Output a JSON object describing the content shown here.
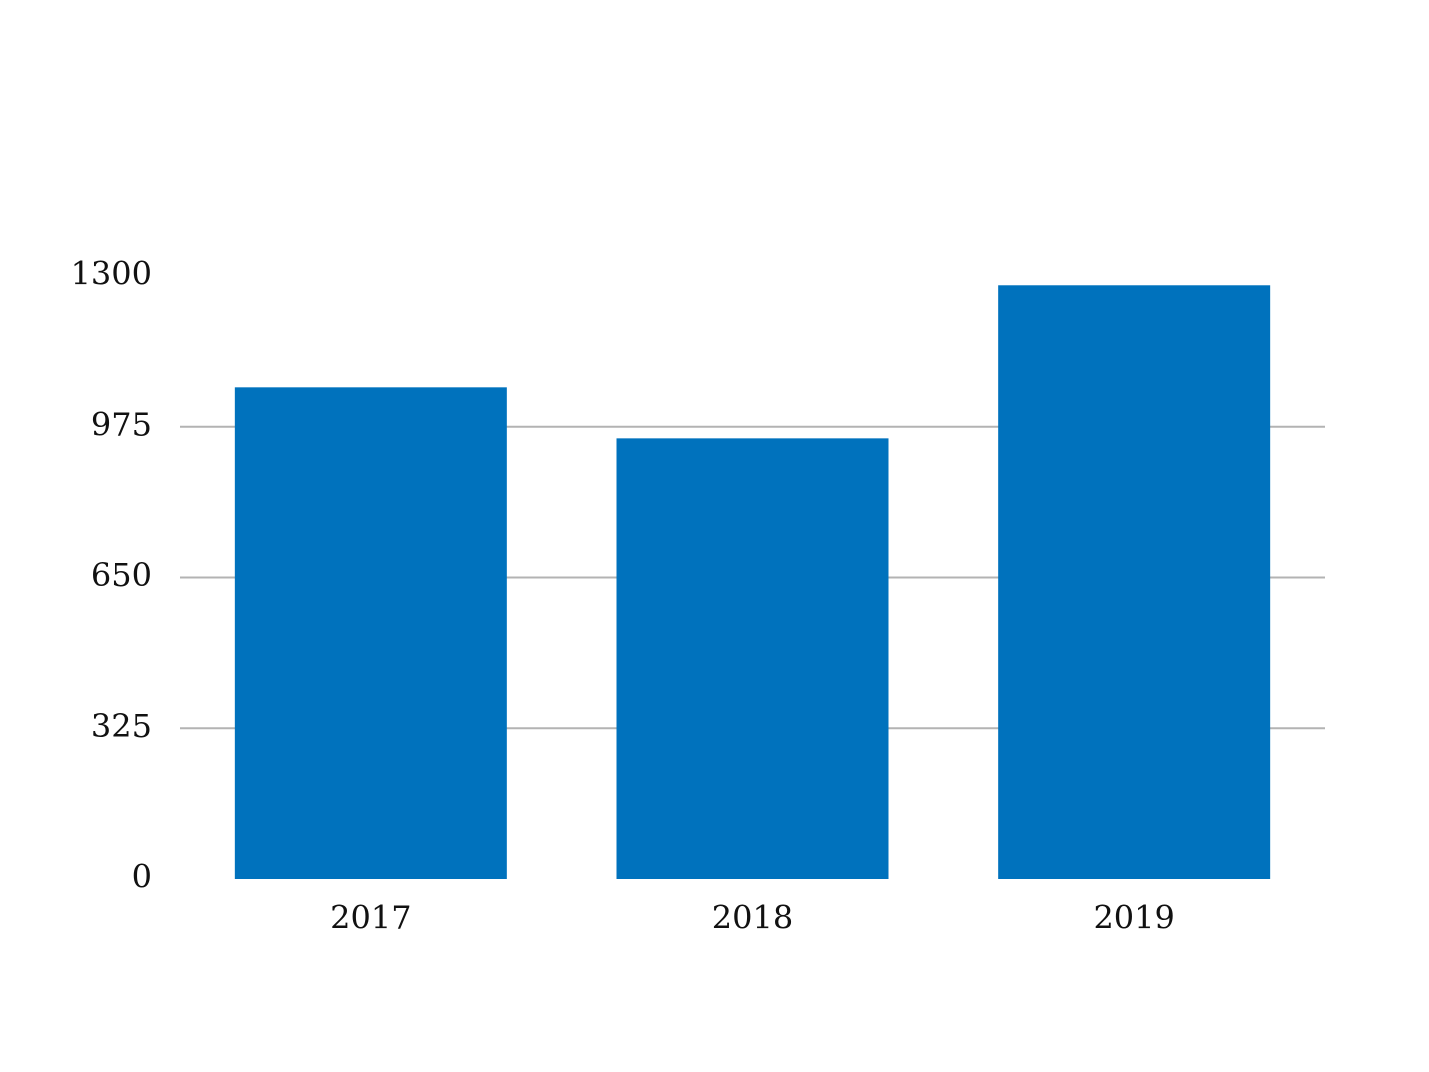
{
  "chart_data": {
    "type": "bar",
    "categories": [
      "2017",
      "2018",
      "2019"
    ],
    "values": [
      1060,
      950,
      1280
    ],
    "title": "",
    "xlabel": "",
    "ylabel": "",
    "ylim": [
      0,
      1300
    ],
    "y_ticks": [
      0,
      325,
      650,
      975,
      1300
    ],
    "y_tick_labels": [
      "0",
      "325",
      "650",
      "975",
      "1300"
    ],
    "grid": true,
    "legend": "none",
    "colors": {
      "bar": "#0072bd",
      "grid": "#b3b3b3",
      "text": "#111111"
    }
  }
}
